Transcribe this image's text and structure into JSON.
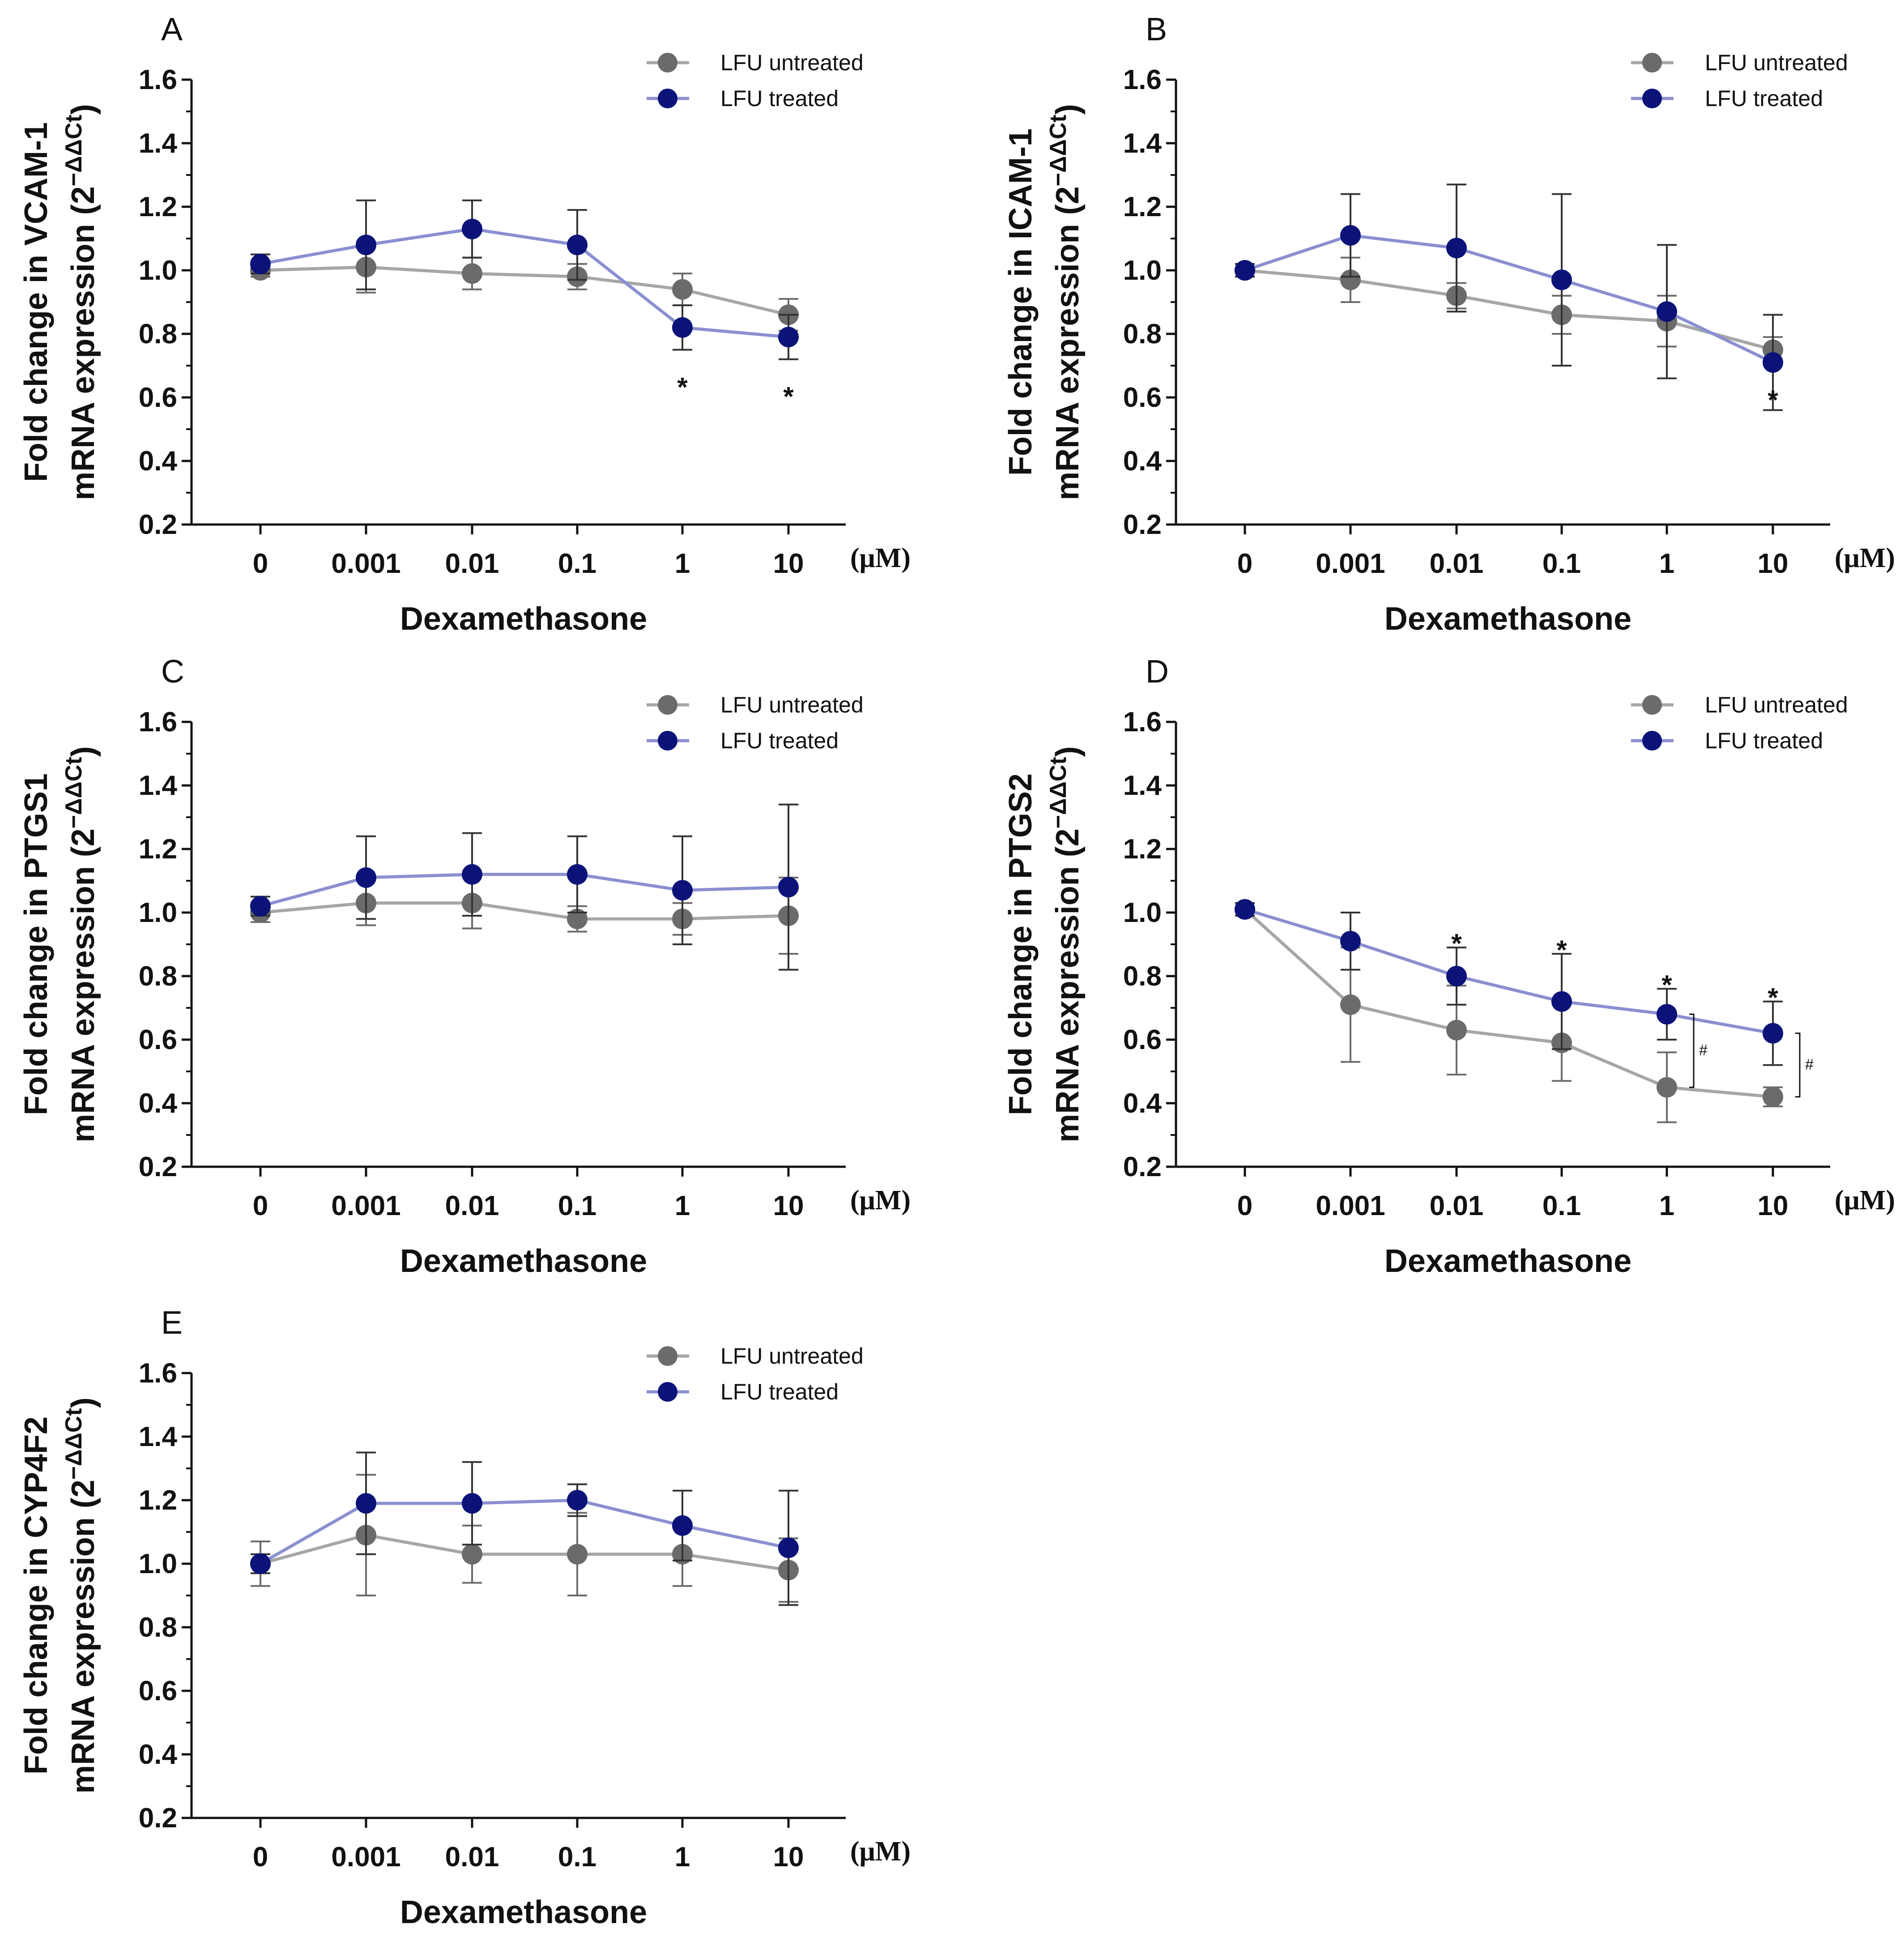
{
  "figure": {
    "colors": {
      "untreated": "#6b6b6b",
      "untreated_line": "#a6a6a6",
      "treated": "#0b1378",
      "treated_line": "#8a8fd1",
      "axis": "#111111"
    }
  },
  "chart_data": [
    {
      "panel": "A",
      "type": "line",
      "categories": [
        "0",
        "0.001",
        "0.01",
        "0.1",
        "1",
        "10"
      ],
      "unit": "(μM)",
      "xlabel": "Dexamethasone",
      "ylabel_line1": "Fold change in VCAM-1",
      "ylabel_line2": "mRNA expression (2",
      "ylabel_sup": "−ΔΔCt",
      "ylabel_close": ")",
      "ylim": [
        0.2,
        1.6
      ],
      "yticks": [
        "0.2",
        "0.4",
        "0.6",
        "0.8",
        "1.0",
        "1.2",
        "1.4",
        "1.6"
      ],
      "legend": [
        "LFU untreated",
        "LFU treated"
      ],
      "series": [
        {
          "name": "LFU untreated",
          "values": [
            1.0,
            1.01,
            0.99,
            0.98,
            0.94,
            0.86
          ],
          "errors": [
            0.02,
            0.08,
            0.05,
            0.04,
            0.05,
            0.05
          ]
        },
        {
          "name": "LFU treated",
          "values": [
            1.02,
            1.08,
            1.13,
            1.08,
            0.82,
            0.79
          ],
          "errors": [
            0.03,
            0.14,
            0.09,
            0.11,
            0.07,
            0.07
          ]
        }
      ],
      "annotations": [
        {
          "category": 4,
          "text": "*",
          "at": 0.66
        },
        {
          "category": 5,
          "text": "*",
          "at": 0.63
        }
      ],
      "brackets": []
    },
    {
      "panel": "B",
      "type": "line",
      "categories": [
        "0",
        "0.001",
        "0.01",
        "0.1",
        "1",
        "10"
      ],
      "unit": "(μM)",
      "xlabel": "Dexamethasone",
      "ylabel_line1": "Fold change in ICAM-1",
      "ylabel_line2": "mRNA expression (2",
      "ylabel_sup": "−ΔΔCt",
      "ylabel_close": ")",
      "ylim": [
        0.2,
        1.6
      ],
      "yticks": [
        "0.2",
        "0.4",
        "0.6",
        "0.8",
        "1.0",
        "1.2",
        "1.4",
        "1.6"
      ],
      "legend": [
        "LFU untreated",
        "LFU treated"
      ],
      "series": [
        {
          "name": "LFU untreated",
          "values": [
            1.0,
            0.97,
            0.92,
            0.86,
            0.84,
            0.75
          ],
          "errors": [
            0.02,
            0.07,
            0.04,
            0.06,
            0.08,
            0.04
          ]
        },
        {
          "name": "LFU treated",
          "values": [
            1.0,
            1.11,
            1.07,
            0.97,
            0.87,
            0.71
          ],
          "errors": [
            0.02,
            0.13,
            0.2,
            0.27,
            0.21,
            0.15
          ]
        }
      ],
      "annotations": [
        {
          "category": 5,
          "text": "*",
          "at": 0.62
        }
      ],
      "brackets": []
    },
    {
      "panel": "C",
      "type": "line",
      "categories": [
        "0",
        "0.001",
        "0.01",
        "0.1",
        "1",
        "10"
      ],
      "unit": "(μM)",
      "xlabel": "Dexamethasone",
      "ylabel_line1": "Fold change in PTGS1",
      "ylabel_line2": "mRNA expression (2",
      "ylabel_sup": "−ΔΔCt",
      "ylabel_close": ")",
      "ylim": [
        0.2,
        1.6
      ],
      "yticks": [
        "0.2",
        "0.4",
        "0.6",
        "0.8",
        "1.0",
        "1.2",
        "1.4",
        "1.6"
      ],
      "legend": [
        "LFU untreated",
        "LFU treated"
      ],
      "series": [
        {
          "name": "LFU untreated",
          "values": [
            1.0,
            1.03,
            1.03,
            0.98,
            0.98,
            0.99
          ],
          "errors": [
            0.03,
            0.07,
            0.08,
            0.04,
            0.05,
            0.12
          ]
        },
        {
          "name": "LFU treated",
          "values": [
            1.02,
            1.11,
            1.12,
            1.12,
            1.07,
            1.08
          ],
          "errors": [
            0.03,
            0.13,
            0.13,
            0.12,
            0.17,
            0.26
          ]
        }
      ],
      "annotations": [],
      "brackets": []
    },
    {
      "panel": "D",
      "type": "line",
      "categories": [
        "0",
        "0.001",
        "0.01",
        "0.1",
        "1",
        "10"
      ],
      "unit": "(μM)",
      "xlabel": "Dexamethasone",
      "ylabel_line1": "Fold change in PTGS2",
      "ylabel_line2": "mRNA expression (2",
      "ylabel_sup": "−ΔΔCt",
      "ylabel_close": ")",
      "ylim": [
        0.2,
        1.6
      ],
      "yticks": [
        "0.2",
        "0.4",
        "0.6",
        "0.8",
        "1.0",
        "1.2",
        "1.4",
        "1.6"
      ],
      "legend": [
        "LFU untreated",
        "LFU treated"
      ],
      "series": [
        {
          "name": "LFU untreated",
          "values": [
            1.01,
            0.71,
            0.63,
            0.59,
            0.45,
            0.42
          ],
          "errors": [
            0.02,
            0.18,
            0.14,
            0.12,
            0.11,
            0.03
          ]
        },
        {
          "name": "LFU treated",
          "values": [
            1.01,
            0.91,
            0.8,
            0.72,
            0.68,
            0.62
          ],
          "errors": [
            0.02,
            0.09,
            0.09,
            0.15,
            0.08,
            0.1
          ]
        }
      ],
      "annotations": [
        {
          "category": 2,
          "text": "*",
          "at": 0.93
        },
        {
          "category": 3,
          "text": "*",
          "at": 0.91
        },
        {
          "category": 4,
          "text": "*",
          "at": 0.8
        },
        {
          "category": 5,
          "text": "*",
          "at": 0.76
        }
      ],
      "brackets": [
        {
          "category": 4,
          "from": 0.45,
          "to": 0.68,
          "text": "#"
        },
        {
          "category": 5,
          "from": 0.42,
          "to": 0.62,
          "text": "#"
        }
      ]
    },
    {
      "panel": "E",
      "type": "line",
      "categories": [
        "0",
        "0.001",
        "0.01",
        "0.1",
        "1",
        "10"
      ],
      "unit": "(μM)",
      "xlabel": "Dexamethasone",
      "ylabel_line1": "Fold change in CYP4F2",
      "ylabel_line2": "mRNA expression (2",
      "ylabel_sup": "−ΔΔCt",
      "ylabel_close": ")",
      "ylim": [
        0.2,
        1.6
      ],
      "yticks": [
        "0.2",
        "0.4",
        "0.6",
        "0.8",
        "1.0",
        "1.2",
        "1.4",
        "1.6"
      ],
      "legend": [
        "LFU untreated",
        "LFU treated"
      ],
      "series": [
        {
          "name": "LFU untreated",
          "values": [
            1.0,
            1.09,
            1.03,
            1.03,
            1.03,
            0.98
          ],
          "errors": [
            0.07,
            0.19,
            0.09,
            0.13,
            0.1,
            0.1
          ]
        },
        {
          "name": "LFU treated",
          "values": [
            1.0,
            1.19,
            1.19,
            1.2,
            1.12,
            1.05
          ],
          "errors": [
            0.03,
            0.16,
            0.13,
            0.05,
            0.11,
            0.18
          ]
        }
      ],
      "annotations": [],
      "brackets": []
    }
  ]
}
